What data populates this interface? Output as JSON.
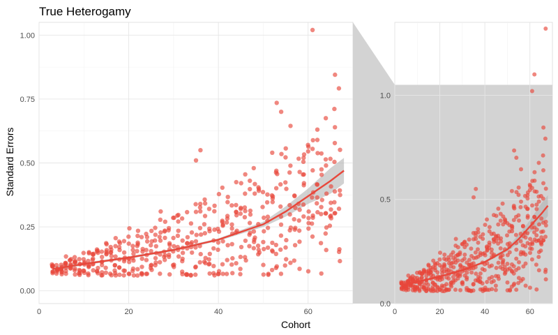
{
  "chart_data": {
    "type": "scatter",
    "title": "True Heterogamy",
    "xlabel": "Cohort",
    "ylabel": "Standard Errors",
    "grid": true,
    "legend": "none",
    "colors": {
      "points": "#e8473b",
      "trend_line": "#e8473b",
      "ribbon": "#b3b3b3",
      "zoom_fill": "#d3d3d3",
      "grid": "#e6e6e6",
      "background": "#ffffff"
    },
    "main_panel": {
      "xlim": [
        0,
        70
      ],
      "ylim": [
        -0.05,
        1.05
      ],
      "x_ticks": [
        0,
        20,
        40,
        60
      ],
      "y_ticks": [
        0.0,
        0.25,
        0.5,
        0.75,
        1.0
      ],
      "y_tick_labels": [
        "0.00",
        "0.25",
        "0.50",
        "0.75",
        "1.00"
      ]
    },
    "zoom_panel": {
      "description_of_relation": "full-range view; the shaded region corresponds to the main panel's y-range",
      "xlim": [
        0,
        70
      ],
      "ylim": [
        0,
        1.35
      ],
      "shaded_ylim": [
        0,
        1.05
      ],
      "x_ticks": [
        0,
        20,
        40,
        60
      ],
      "y_ticks": [
        0.0,
        0.5,
        1.0
      ],
      "y_tick_labels": [
        "0.0",
        "0.5",
        "1.0"
      ]
    },
    "trend": {
      "x": [
        3,
        10,
        20,
        30,
        40,
        50,
        55,
        60,
        65,
        68
      ],
      "y": [
        0.085,
        0.105,
        0.13,
        0.16,
        0.2,
        0.26,
        0.31,
        0.37,
        0.43,
        0.47
      ],
      "upper": [
        0.095,
        0.11,
        0.135,
        0.165,
        0.205,
        0.27,
        0.33,
        0.4,
        0.48,
        0.52
      ],
      "lower": [
        0.075,
        0.1,
        0.125,
        0.155,
        0.195,
        0.25,
        0.29,
        0.34,
        0.38,
        0.42
      ]
    },
    "outliers": [
      {
        "x": 61,
        "y": 1.02
      },
      {
        "x": 66,
        "y": 0.845
      },
      {
        "x": 53,
        "y": 0.735
      },
      {
        "x": 54,
        "y": 0.7
      },
      {
        "x": 36,
        "y": 0.55
      },
      {
        "x": 35,
        "y": 0.51
      },
      {
        "x": 61,
        "y": 0.555
      },
      {
        "x": 52,
        "y": 0.54
      },
      {
        "x": 64,
        "y": 0.49
      },
      {
        "x": 59,
        "y": 0.52
      },
      {
        "x": 62,
        "y": 1.1
      },
      {
        "x": 67,
        "y": 1.32
      }
    ],
    "point_band": {
      "x_range": [
        3,
        67
      ],
      "points_per_cohort": 8,
      "spread_base": 0.01,
      "spread_growth": 0.004
    }
  }
}
